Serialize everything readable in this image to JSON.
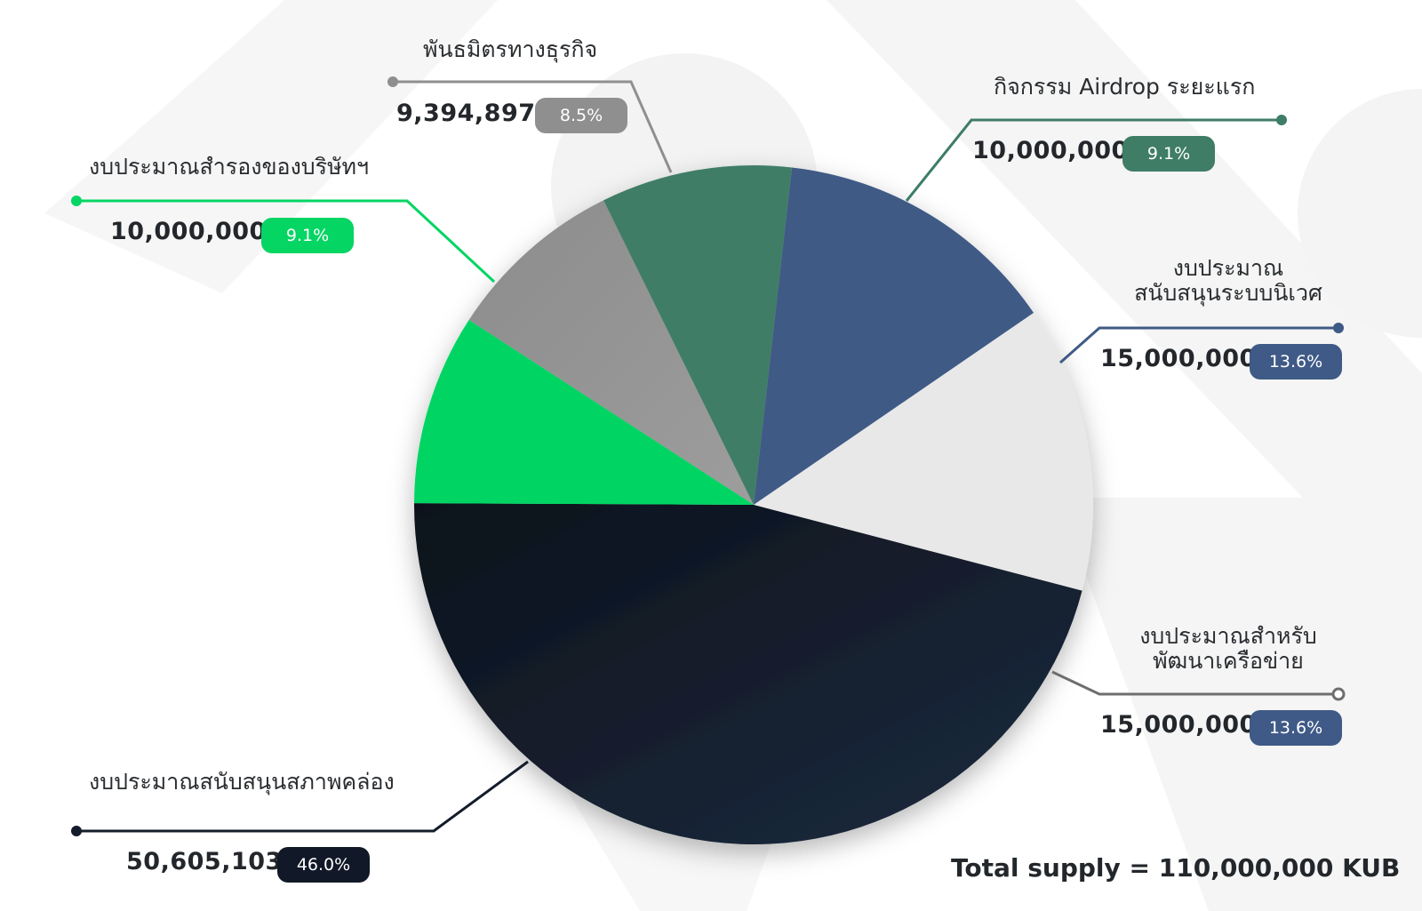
{
  "chart_data": {
    "type": "pie",
    "unit": "KUB",
    "total_label": "Total supply = 110,000,000 KUB",
    "slices": [
      {
        "label": "พันธมิตรทางธุรกิจ",
        "value": 9394897,
        "value_text": "9,394,897",
        "percent_text": "8.5%",
        "color": "#969696"
      },
      {
        "label": "กิจกรรม Airdrop ระยะแรก",
        "value": 10000000,
        "value_text": "10,000,000",
        "percent_text": "9.1%",
        "color": "#3f7d66"
      },
      {
        "label": "งบประมาณสนับสนุนระบบนิเวศ",
        "label_lines": [
          "งบประมาณ",
          "สนับสนุนระบบนิเวศ"
        ],
        "value": 15000000,
        "value_text": "15,000,000",
        "percent_text": "13.6%",
        "color": "#3f5a86"
      },
      {
        "label": "งบประมาณสำหรับพัฒนาเครือข่าย",
        "label_lines": [
          "งบประมาณสำหรับ",
          "พัฒนาเครือข่าย"
        ],
        "value": 15000000,
        "value_text": "15,000,000",
        "percent_text": "13.6%",
        "color": "#e8e8e8",
        "badge_color": "#3f5a86"
      },
      {
        "label": "งบประมาณสนับสนุนสภาพคล่อง",
        "value": 50605103,
        "value_text": "50,605,103",
        "percent_text": "46.0%",
        "color": "#141c2b"
      },
      {
        "label": "งบประมาณสำรองของบริษัทฯ",
        "value": 10000000,
        "value_text": "10,000,000",
        "percent_text": "9.1%",
        "color": "#05d563"
      }
    ]
  }
}
